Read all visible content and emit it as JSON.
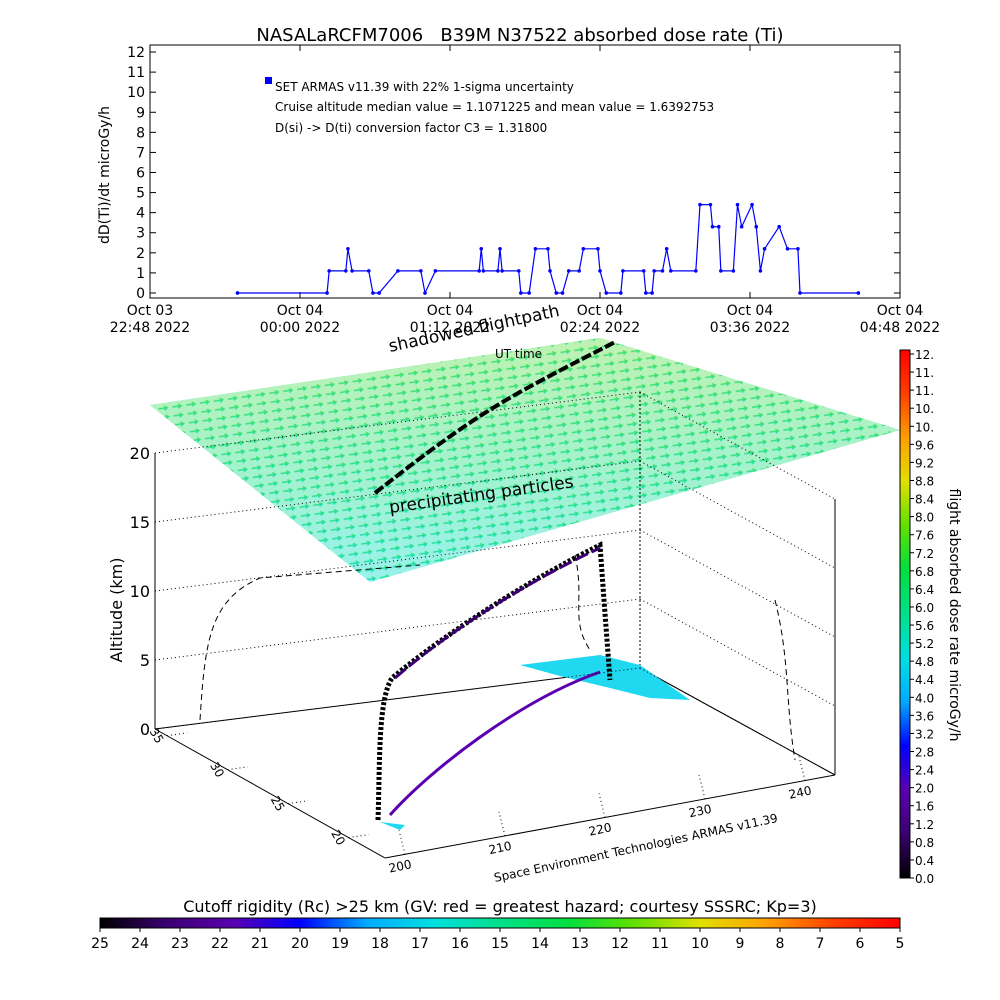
{
  "chart_data": [
    {
      "type": "line",
      "title": "NASALaRCFM7006   B39M N37522 absorbed dose rate (Ti)",
      "ylabel": "dD(Ti)/dt microGy/h",
      "annotations": [
        "Cruise altitude median value = 1.1071225 and mean value = 1.6392753",
        "D(si) -> D(ti) conversion factor C3 = 1.31800"
      ],
      "x": [
        "2022-10-03T23:30",
        "2022-10-04T00:13",
        "2022-10-04T00:14",
        "2022-10-04T00:22",
        "2022-10-04T00:23",
        "2022-10-04T00:25",
        "2022-10-04T00:33",
        "2022-10-04T00:35",
        "2022-10-04T00:38",
        "2022-10-04T00:47",
        "2022-10-04T00:58",
        "2022-10-04T01:00",
        "2022-10-04T01:05",
        "2022-10-04T01:26",
        "2022-10-04T01:27",
        "2022-10-04T01:28",
        "2022-10-04T01:35",
        "2022-10-04T01:36",
        "2022-10-04T01:37",
        "2022-10-04T01:45",
        "2022-10-04T01:46",
        "2022-10-04T01:50",
        "2022-10-04T01:53",
        "2022-10-04T01:59",
        "2022-10-04T02:00",
        "2022-10-04T02:03",
        "2022-10-04T02:06",
        "2022-10-04T02:09",
        "2022-10-04T02:14",
        "2022-10-04T02:16",
        "2022-10-04T02:23",
        "2022-10-04T02:24",
        "2022-10-04T02:27",
        "2022-10-04T02:34",
        "2022-10-04T02:35",
        "2022-10-04T02:45",
        "2022-10-04T02:46",
        "2022-10-04T02:49",
        "2022-10-04T02:50",
        "2022-10-04T02:54",
        "2022-10-04T02:56",
        "2022-10-04T02:58",
        "2022-10-04T03:10",
        "2022-10-04T03:12",
        "2022-10-04T03:17",
        "2022-10-04T03:18",
        "2022-10-04T03:21",
        "2022-10-04T03:22",
        "2022-10-04T03:28",
        "2022-10-04T03:30",
        "2022-10-04T03:32",
        "2022-10-04T03:37",
        "2022-10-04T03:39",
        "2022-10-04T03:41",
        "2022-10-04T03:43",
        "2022-10-04T03:50",
        "2022-10-04T03:54",
        "2022-10-04T03:59",
        "2022-10-04T04:00",
        "2022-10-04T04:28"
      ],
      "series": [
        {
          "name": "SET ARMAS v11.39 with 22% 1-sigma uncertainty",
          "color": "#0000ff",
          "values": [
            0,
            0,
            1.1,
            1.1,
            2.2,
            1.1,
            1.1,
            0,
            0,
            1.1,
            1.1,
            0,
            1.1,
            1.1,
            2.2,
            1.1,
            1.1,
            2.2,
            1.1,
            1.1,
            0,
            0,
            2.2,
            2.2,
            1.1,
            0,
            0,
            1.1,
            1.1,
            2.2,
            2.2,
            1.1,
            0,
            0,
            1.1,
            1.1,
            0,
            0,
            1.1,
            1.1,
            2.2,
            1.1,
            1.1,
            4.4,
            4.4,
            3.3,
            3.3,
            1.1,
            1.1,
            4.4,
            3.3,
            4.4,
            3.3,
            1.1,
            2.2,
            3.3,
            2.2,
            2.2,
            0,
            0
          ]
        }
      ],
      "xlim": [
        "2022-10-03T22:48",
        "2022-10-04T04:48"
      ],
      "xticks": [
        {
          "value": "2022-10-03T22:48",
          "label": [
            "Oct 03",
            "22:48 2022"
          ]
        },
        {
          "value": "2022-10-04T00:00",
          "label": [
            "Oct 04",
            "00:00 2022"
          ]
        },
        {
          "value": "2022-10-04T01:12",
          "label": [
            "Oct 04",
            "01:12 2022"
          ]
        },
        {
          "value": "2022-10-04T02:24",
          "label": [
            "Oct 04",
            "02:24 2022"
          ]
        },
        {
          "value": "2022-10-04T03:36",
          "label": [
            "Oct 04",
            "03:36 2022"
          ]
        },
        {
          "value": "2022-10-04T04:48",
          "label": [
            "Oct 04",
            "04:48 2022"
          ]
        }
      ],
      "ylim": [
        -0.25,
        12.35
      ],
      "yticks": [
        0,
        1,
        2,
        3,
        4,
        5,
        6,
        7,
        8,
        9,
        10,
        11,
        12
      ]
    },
    {
      "type": "surface3d",
      "zlabel": "Altitude (km)",
      "zlim": [
        0,
        20
      ],
      "zticks": [
        0,
        5,
        10,
        15,
        20
      ],
      "xlim": [
        198,
        243
      ],
      "xticks": [
        200,
        210,
        220,
        230,
        240
      ],
      "ylim": [
        17,
        36
      ],
      "yticks": [
        20,
        25,
        30,
        35
      ],
      "annotations": [
        "shadowed flightpath",
        "UT time",
        "precipitating particles"
      ],
      "footer": "Space Environment Technologies ARMAS v11.39"
    },
    {
      "type": "colorbar",
      "orientation": "vertical",
      "label": "flight absorbed dose rate microGy/h",
      "lim": [
        0,
        11.6
      ],
      "ticks": [
        {
          "value": 0,
          "label": "0.0"
        },
        0.4,
        0.8,
        1.2,
        1.6,
        {
          "value": 2,
          "label": "2.0"
        },
        2.4,
        2.8,
        3.2,
        3.6,
        {
          "value": 4,
          "label": "4.0"
        },
        4.4,
        4.8,
        5.2,
        5.6,
        {
          "value": 6,
          "label": "6.0"
        },
        6.4,
        6.8,
        7.2,
        7.6,
        {
          "value": 8,
          "label": "8.0"
        },
        8.4,
        8.8,
        9.2,
        9.6,
        {
          "value": 10,
          "label": "10."
        },
        {
          "value": 10.4,
          "label": "10."
        },
        {
          "value": 10.8,
          "label": "11."
        },
        {
          "value": 11.2,
          "label": "11."
        },
        {
          "value": 11.6,
          "label": "12."
        }
      ],
      "colors": [
        "#000000",
        "#3a0070",
        "#5a00b0",
        "#0000ff",
        "#00aaff",
        "#00e0e0",
        "#00e08a",
        "#00e040",
        "#60e000",
        "#e0e000",
        "#ffa000",
        "#ff4000",
        "#ff0000"
      ]
    },
    {
      "type": "colorbar",
      "orientation": "horizontal",
      "label": "Cutoff rigidity (Rc) >25 km (GV: red = greatest hazard; courtesy SSSRC; Kp=3)",
      "lim": [
        25,
        5
      ],
      "ticks": [
        25,
        24,
        23,
        22,
        21,
        20,
        19,
        18,
        17,
        16,
        15,
        14,
        13,
        12,
        11,
        10,
        9,
        8,
        7,
        6,
        5
      ],
      "colors": [
        "#000000",
        "#3a0070",
        "#5a00b0",
        "#0000ff",
        "#00aaff",
        "#00e0e0",
        "#00e08a",
        "#00e040",
        "#60e000",
        "#e0e000",
        "#ffa000",
        "#ff4000",
        "#ff0000"
      ]
    }
  ]
}
